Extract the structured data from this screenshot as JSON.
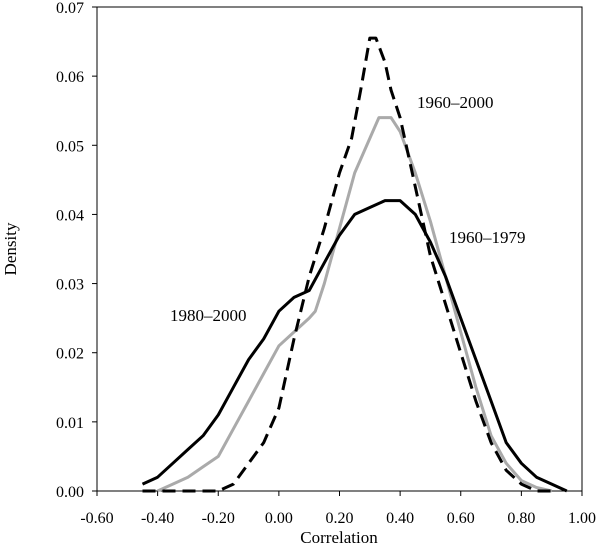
{
  "chart_data": {
    "type": "line",
    "title": "",
    "xlabel": "Correlation",
    "ylabel": "Density",
    "xlim": [
      -0.6,
      1.0
    ],
    "ylim": [
      0,
      0.07
    ],
    "grid": false,
    "x_ticks": [
      "-0.60",
      "-0.40",
      "-0.20",
      "0.00",
      "0.20",
      "0.40",
      "0.60",
      "0.80",
      "1.00"
    ],
    "y_ticks": [
      "0.00",
      "0.01",
      "0.02",
      "0.03",
      "0.04",
      "0.05",
      "0.06",
      "0.07"
    ],
    "series": [
      {
        "name": "1960–2000",
        "color": "#000000",
        "style": "dashed",
        "x": [
          -0.45,
          -0.35,
          -0.25,
          -0.2,
          -0.15,
          -0.1,
          -0.05,
          0.0,
          0.05,
          0.1,
          0.15,
          0.2,
          0.24,
          0.27,
          0.3,
          0.32,
          0.35,
          0.37,
          0.4,
          0.45,
          0.5,
          0.55,
          0.6,
          0.65,
          0.7,
          0.75,
          0.8,
          0.85,
          0.9
        ],
        "y": [
          0,
          0,
          0,
          0,
          0.001,
          0.004,
          0.007,
          0.012,
          0.022,
          0.031,
          0.038,
          0.046,
          0.051,
          0.058,
          0.0655,
          0.0655,
          0.062,
          0.058,
          0.054,
          0.044,
          0.034,
          0.027,
          0.02,
          0.013,
          0.007,
          0.003,
          0.001,
          0,
          0
        ]
      },
      {
        "name": "1960–1979",
        "color": "#aaaaaa",
        "style": "solid",
        "x": [
          -0.4,
          -0.35,
          -0.3,
          -0.25,
          -0.2,
          -0.15,
          -0.1,
          -0.05,
          0.0,
          0.05,
          0.1,
          0.12,
          0.15,
          0.2,
          0.25,
          0.3,
          0.33,
          0.35,
          0.37,
          0.4,
          0.45,
          0.5,
          0.55,
          0.6,
          0.65,
          0.7,
          0.75,
          0.8,
          0.85,
          0.9
        ],
        "y": [
          0,
          0.001,
          0.002,
          0.0035,
          0.005,
          0.009,
          0.013,
          0.017,
          0.021,
          0.023,
          0.025,
          0.026,
          0.03,
          0.038,
          0.046,
          0.051,
          0.054,
          0.054,
          0.054,
          0.052,
          0.046,
          0.039,
          0.031,
          0.023,
          0.015,
          0.008,
          0.004,
          0.0015,
          0.0005,
          0
        ]
      },
      {
        "name": "1980–2000",
        "color": "#000000",
        "style": "solid",
        "x": [
          -0.45,
          -0.4,
          -0.35,
          -0.3,
          -0.25,
          -0.2,
          -0.15,
          -0.1,
          -0.05,
          0.0,
          0.05,
          0.1,
          0.15,
          0.2,
          0.25,
          0.3,
          0.35,
          0.4,
          0.45,
          0.5,
          0.55,
          0.6,
          0.65,
          0.7,
          0.75,
          0.8,
          0.85,
          0.9,
          0.95
        ],
        "y": [
          0.001,
          0.002,
          0.004,
          0.006,
          0.008,
          0.011,
          0.015,
          0.019,
          0.022,
          0.026,
          0.028,
          0.029,
          0.033,
          0.037,
          0.04,
          0.041,
          0.042,
          0.042,
          0.04,
          0.036,
          0.031,
          0.025,
          0.019,
          0.013,
          0.007,
          0.004,
          0.002,
          0.001,
          0
        ]
      }
    ]
  }
}
